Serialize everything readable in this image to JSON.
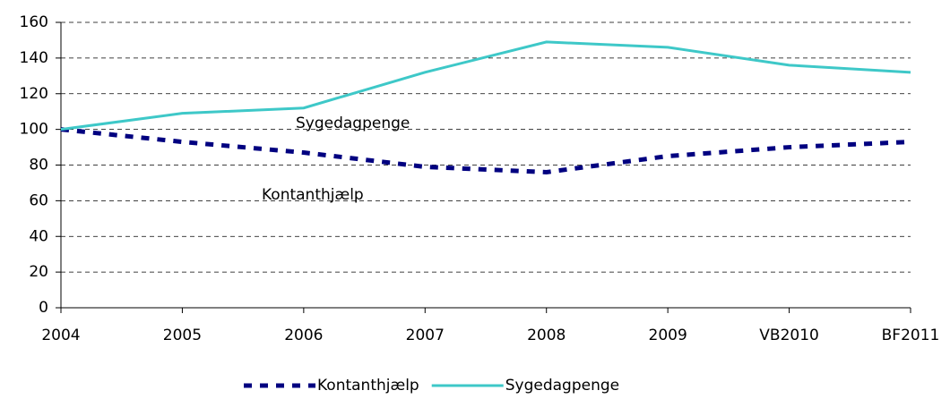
{
  "chart_data": {
    "type": "line",
    "categories": [
      "2004",
      "2005",
      "2006",
      "2007",
      "2008",
      "2009",
      "VB2010",
      "BF2011"
    ],
    "series": [
      {
        "name": "Kontanthjælp",
        "color": "#000080",
        "line_style": "dashed",
        "values": [
          100,
          93,
          87,
          79,
          76,
          85,
          90,
          93
        ]
      },
      {
        "name": "Sygedagpenge",
        "color": "#3ec8c8",
        "line_style": "solid",
        "values": [
          100,
          109,
          112,
          132,
          149,
          146,
          136,
          132
        ]
      }
    ],
    "annotations": [
      "Sygedagpenge",
      "Kontanthjælp"
    ],
    "ylim": [
      0,
      160
    ],
    "yticks": [
      0,
      20,
      40,
      60,
      80,
      100,
      120,
      140,
      160
    ],
    "grid": true,
    "legend": "bottom"
  }
}
